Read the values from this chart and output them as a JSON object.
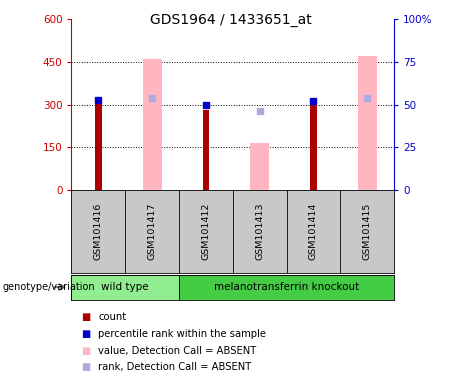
{
  "title": "GDS1964 / 1433651_at",
  "samples": [
    "GSM101416",
    "GSM101417",
    "GSM101412",
    "GSM101413",
    "GSM101414",
    "GSM101415"
  ],
  "count_values": [
    315,
    null,
    280,
    null,
    315,
    null
  ],
  "rank_values": [
    53,
    null,
    50,
    null,
    52,
    null
  ],
  "absent_value_values": [
    null,
    460,
    null,
    165,
    null,
    470
  ],
  "absent_rank_values": [
    null,
    54,
    null,
    46,
    null,
    54
  ],
  "ylim_left": [
    0,
    600
  ],
  "ylim_right": [
    0,
    100
  ],
  "yticks_left": [
    0,
    150,
    300,
    450,
    600
  ],
  "yticks_right": [
    0,
    25,
    50,
    75,
    100
  ],
  "ytick_labels_left": [
    "0",
    "150",
    "300",
    "450",
    "600"
  ],
  "ytick_labels_right": [
    "0",
    "25",
    "50",
    "75",
    "100%"
  ],
  "count_color": "#aa0000",
  "rank_color": "#0000cc",
  "absent_value_color": "#ffb6c1",
  "absent_rank_color": "#aaaadd",
  "bg_color": "#c8c8c8",
  "plot_bg": "#ffffff",
  "left_axis_color": "#cc0000",
  "right_axis_color": "#0000cc",
  "genotype_label": "genotype/variation",
  "wt_color": "#90ee90",
  "ko_color": "#44cc44",
  "group_border_color": "#000000"
}
